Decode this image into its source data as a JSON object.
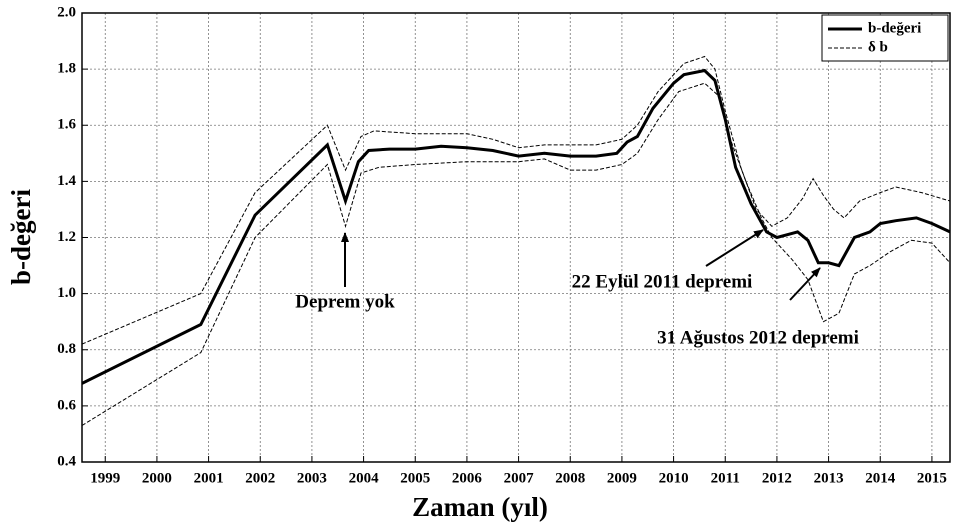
{
  "chart_data": {
    "type": "line",
    "xlabel": "Zaman (yıl)",
    "ylabel": "b-değeri",
    "xlim": [
      1998.55,
      2015.35
    ],
    "ylim": [
      0.4,
      2.0
    ],
    "xticks": [
      1999,
      2000,
      2001,
      2002,
      2003,
      2004,
      2005,
      2006,
      2007,
      2008,
      2009,
      2010,
      2011,
      2012,
      2013,
      2014,
      2015
    ],
    "yticks": [
      {
        "value": 0.4,
        "label": "0.4"
      },
      {
        "value": 0.6,
        "label": "0.6"
      },
      {
        "value": 0.8,
        "label": "0.8"
      },
      {
        "value": 1.0,
        "label": "1.0"
      },
      {
        "value": 1.2,
        "label": "1.2"
      },
      {
        "value": 1.4,
        "label": "1.4"
      },
      {
        "value": 1.6,
        "label": "1.6"
      },
      {
        "value": 1.8,
        "label": "1.8"
      },
      {
        "value": 2.0,
        "label": "2.0"
      }
    ],
    "grid": true,
    "legend": "upper right",
    "series": [
      {
        "name": "b-değeri",
        "color": "#000000",
        "x": [
          1998.55,
          2000.85,
          2001.9,
          2003.3,
          2003.65,
          2003.9,
          2004.1,
          2004.5,
          2005,
          2005.5,
          2006,
          2006.5,
          2007,
          2007.5,
          2008,
          2008.5,
          2008.9,
          2009.1,
          2009.3,
          2009.6,
          2010,
          2010.2,
          2010.6,
          2010.8,
          2011,
          2011.2,
          2011.5,
          2011.8,
          2012,
          2012.2,
          2012.4,
          2012.6,
          2012.8,
          2013,
          2013.2,
          2013.5,
          2013.8,
          2014,
          2014.3,
          2014.7,
          2015,
          2015.35
        ],
        "values": [
          0.68,
          0.89,
          1.28,
          1.53,
          1.33,
          1.47,
          1.51,
          1.515,
          1.515,
          1.525,
          1.52,
          1.51,
          1.49,
          1.5,
          1.49,
          1.49,
          1.5,
          1.54,
          1.56,
          1.66,
          1.75,
          1.78,
          1.795,
          1.76,
          1.62,
          1.45,
          1.32,
          1.22,
          1.2,
          1.21,
          1.22,
          1.19,
          1.11,
          1.11,
          1.1,
          1.2,
          1.22,
          1.25,
          1.26,
          1.27,
          1.25,
          1.22
        ]
      },
      {
        "name": "δ b",
        "color": "#000000",
        "dashed": true,
        "upper": {
          "x": [
            1998.55,
            2000.85,
            2001.9,
            2003.3,
            2003.65,
            2003.95,
            2004.2,
            2005,
            2006,
            2006.5,
            2007,
            2007.5,
            2008.5,
            2009,
            2009.3,
            2009.7,
            2010.2,
            2010.6,
            2010.8,
            2011,
            2011.3,
            2011.6,
            2011.9,
            2012.2,
            2012.5,
            2012.7,
            2012.9,
            2013.1,
            2013.3,
            2013.6,
            2014,
            2014.3,
            2014.8,
            2015.35
          ],
          "values": [
            0.82,
            1.0,
            1.36,
            1.6,
            1.44,
            1.56,
            1.58,
            1.57,
            1.57,
            1.55,
            1.52,
            1.53,
            1.53,
            1.55,
            1.6,
            1.72,
            1.82,
            1.845,
            1.8,
            1.65,
            1.45,
            1.3,
            1.24,
            1.27,
            1.34,
            1.41,
            1.35,
            1.3,
            1.27,
            1.33,
            1.36,
            1.38,
            1.36,
            1.33
          ]
        },
        "lower": {
          "x": [
            1998.55,
            2000.85,
            2001.9,
            2003.3,
            2003.65,
            2003.95,
            2004.3,
            2005,
            2006,
            2006.5,
            2007,
            2007.5,
            2008,
            2008.5,
            2009,
            2009.3,
            2009.7,
            2010.1,
            2010.6,
            2010.9,
            2011.1,
            2011.4,
            2011.7,
            2011.9,
            2012.3,
            2012.6,
            2012.9,
            2013.2,
            2013.5,
            2013.8,
            2014.2,
            2014.6,
            2015,
            2015.35
          ],
          "values": [
            0.53,
            0.79,
            1.2,
            1.46,
            1.24,
            1.43,
            1.45,
            1.46,
            1.47,
            1.47,
            1.47,
            1.48,
            1.44,
            1.44,
            1.46,
            1.5,
            1.62,
            1.72,
            1.75,
            1.7,
            1.55,
            1.4,
            1.27,
            1.2,
            1.12,
            1.05,
            0.9,
            0.93,
            1.07,
            1.1,
            1.15,
            1.19,
            1.18,
            1.11
          ]
        }
      }
    ],
    "annotations": [
      "Deprem yok",
      "22 Eylül 2011 depremi",
      "31 Ağustos 2012 depremi"
    ]
  }
}
